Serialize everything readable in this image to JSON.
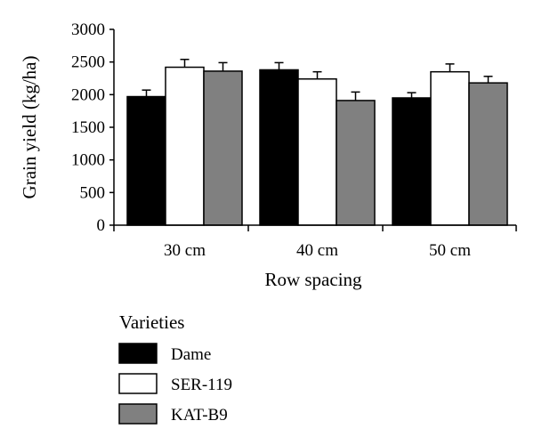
{
  "chart_data": {
    "type": "bar",
    "categories": [
      "30 cm",
      "40 cm",
      "50 cm"
    ],
    "series": [
      {
        "name": "Dame",
        "color": "#000000",
        "values": [
          1970,
          2380,
          1950
        ],
        "errors": [
          100,
          110,
          80
        ]
      },
      {
        "name": "SER-119",
        "color": "#ffffff",
        "values": [
          2420,
          2240,
          2350
        ],
        "errors": [
          120,
          110,
          120
        ]
      },
      {
        "name": "KAT-B9",
        "color": "#808080",
        "values": [
          2360,
          1910,
          2180
        ],
        "errors": [
          130,
          130,
          100
        ]
      }
    ],
    "xlabel": "Row spacing",
    "ylabel": "Grain yield (kg/ha)",
    "ylim": [
      0,
      3000
    ],
    "yticks": [
      "0",
      "500",
      "1000",
      "1500",
      "2000",
      "2500",
      "3000"
    ],
    "ytick_values": [
      0,
      500,
      1000,
      1500,
      2000,
      2500,
      3000
    ],
    "legend": {
      "title": "Varieties",
      "placement": "bottom"
    }
  }
}
